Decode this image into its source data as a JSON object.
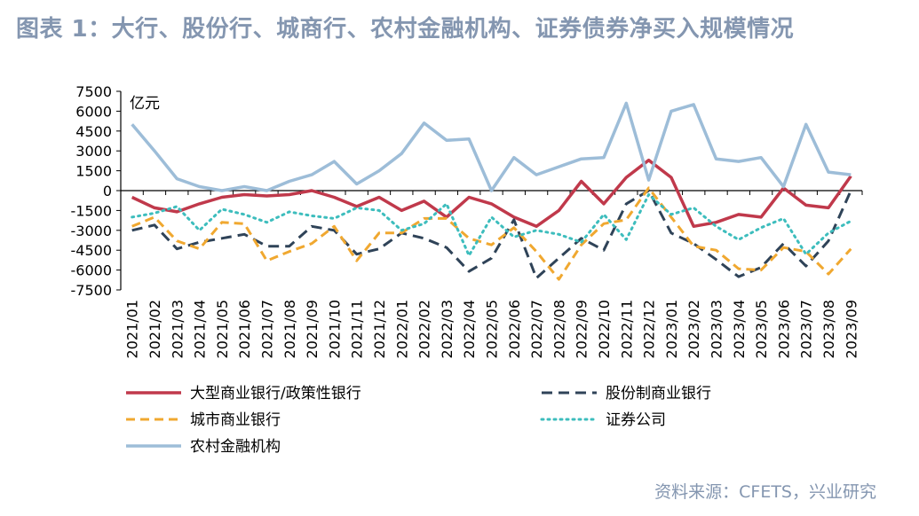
{
  "title": "图表 1：大行、股份行、城商行、农村金融机构、证券债券净买入规模情况",
  "source": "资料来源：CFETS，兴业研究",
  "chart_data": {
    "type": "line",
    "unit_label": "亿元",
    "ylim": [
      -7500,
      7500
    ],
    "yticks": [
      7500,
      6000,
      4500,
      3000,
      1500,
      0,
      -1500,
      -3000,
      -4500,
      -6000,
      -7500
    ],
    "legend_position": "bottom",
    "categories": [
      "2021/01",
      "2021/02",
      "2021/03",
      "2021/04",
      "2021/05",
      "2021/06",
      "2021/07",
      "2021/08",
      "2021/09",
      "2021/10",
      "2021/11",
      "2021/12",
      "2022/01",
      "2022/02",
      "2022/03",
      "2022/04",
      "2022/05",
      "2022/06",
      "2022/07",
      "2022/08",
      "2022/09",
      "2022/10",
      "2022/11",
      "2022/12",
      "2023/01",
      "2023/02",
      "2023/03",
      "2023/04",
      "2023/05",
      "2023/06",
      "2023/07",
      "2023/08",
      "2023/09"
    ],
    "series": [
      {
        "name": "大型商业银行/政策性银行",
        "color": "#C0394B",
        "dash": "solid",
        "width": 3.5,
        "values": [
          -500,
          -1300,
          -1600,
          -1000,
          -500,
          -300,
          -400,
          -300,
          0,
          -500,
          -1200,
          -500,
          -1500,
          -800,
          -2000,
          -500,
          -1000,
          -2000,
          -2700,
          -1500,
          700,
          -1000,
          1000,
          2300,
          1000,
          -2700,
          -2400,
          -1800,
          -2000,
          200,
          -1100,
          -1300,
          1100
        ]
      },
      {
        "name": "股份制商业银行",
        "color": "#2F4358",
        "dash": "12 7",
        "width": 3,
        "values": [
          -3000,
          -2600,
          -4400,
          -3900,
          -3600,
          -3300,
          -4200,
          -4200,
          -2700,
          -3000,
          -4800,
          -4400,
          -3200,
          -3600,
          -4300,
          -6100,
          -5100,
          -2200,
          -6600,
          -5100,
          -3600,
          -4500,
          -1000,
          0,
          -3200,
          -4000,
          -5200,
          -6500,
          -5800,
          -4000,
          -5700,
          -3800,
          0
        ]
      },
      {
        "name": "城市商业银行",
        "color": "#F0A830",
        "dash": "10 6",
        "width": 3,
        "values": [
          -2700,
          -2000,
          -3800,
          -4400,
          -2400,
          -2500,
          -5300,
          -4600,
          -4000,
          -2700,
          -5300,
          -3200,
          -3200,
          -2100,
          -2100,
          -3600,
          -4100,
          -2800,
          -4600,
          -6700,
          -4100,
          -2500,
          -2200,
          200,
          -2000,
          -4200,
          -4500,
          -5900,
          -6000,
          -4300,
          -4600,
          -6300,
          -4400
        ]
      },
      {
        "name": "证券公司",
        "color": "#3DBDBD",
        "dash": "2 5",
        "width": 3,
        "values": [
          -2000,
          -1700,
          -1200,
          -3000,
          -1400,
          -1800,
          -2400,
          -1600,
          -1900,
          -2100,
          -1300,
          -1500,
          -3000,
          -2500,
          -1000,
          -4900,
          -2000,
          -3500,
          -3000,
          -3300,
          -3900,
          -1800,
          -3700,
          -300,
          -1800,
          -1300,
          -2700,
          -3700,
          -2800,
          -2100,
          -4800,
          -3200,
          -2300
        ]
      },
      {
        "name": "农村金融机构",
        "color": "#9DBDD8",
        "dash": "solid",
        "width": 3.5,
        "values": [
          5000,
          3000,
          900,
          300,
          0,
          300,
          0,
          700,
          1200,
          2200,
          500,
          1500,
          2800,
          5100,
          3800,
          3900,
          0,
          2500,
          1200,
          1800,
          2400,
          2500,
          6600,
          800,
          6000,
          6500,
          2400,
          2200,
          2500,
          300,
          5000,
          1400,
          1200
        ]
      }
    ]
  }
}
